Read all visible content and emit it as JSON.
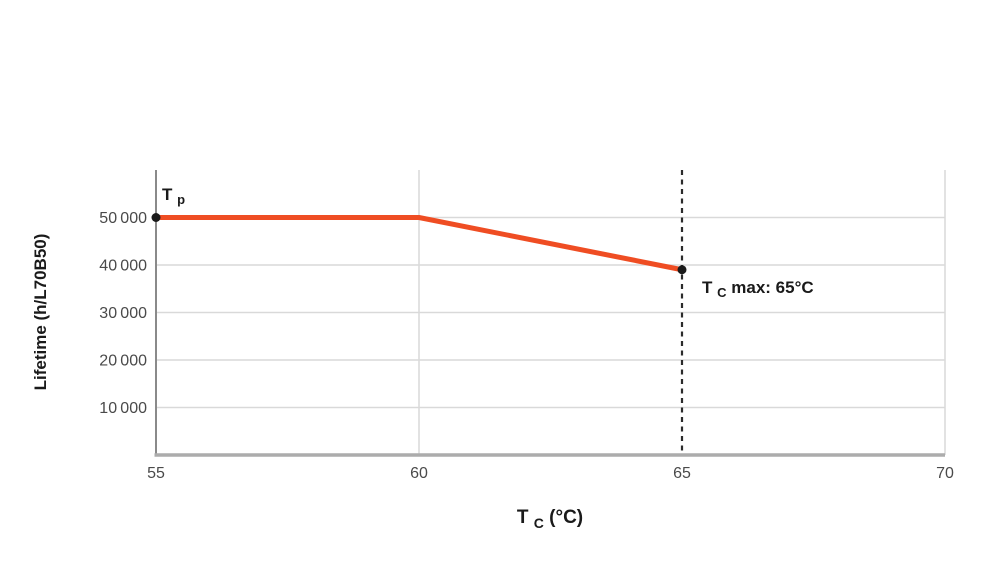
{
  "chart_data": {
    "type": "line",
    "title": "",
    "xlabel": {
      "main": "T",
      "sub": "C",
      "rest": " (°C)"
    },
    "ylabel": "Lifetime (h/L70B50)",
    "xlim": [
      55,
      70
    ],
    "ylim": [
      0,
      60000
    ],
    "grid": true,
    "legend": false,
    "x_ticks": [
      {
        "value": 55,
        "label": "55"
      },
      {
        "value": 60,
        "label": "60"
      },
      {
        "value": 65,
        "label": "65"
      },
      {
        "value": 70,
        "label": "70"
      }
    ],
    "y_ticks": [
      {
        "value": 10000,
        "label": "10 000"
      },
      {
        "value": 20000,
        "label": "20 000"
      },
      {
        "value": 30000,
        "label": "30 000"
      },
      {
        "value": 40000,
        "label": "40 000"
      },
      {
        "value": 50000,
        "label": "50 000"
      }
    ],
    "series": [
      {
        "name": "lifetime-curve",
        "color": "#EF4D23",
        "points": [
          [
            55,
            50000
          ],
          [
            60,
            50000
          ],
          [
            65,
            39000
          ]
        ]
      }
    ],
    "markers": [
      {
        "x": 55,
        "y": 50000
      },
      {
        "x": 65,
        "y": 39000
      }
    ],
    "reference_line": {
      "x": 65,
      "style": "dashed",
      "color": "#2b2b2b"
    },
    "annotations": [
      {
        "id": "tp-point-label",
        "main": "T",
        "sub": "p",
        "rest": ""
      },
      {
        "id": "tc-max-label",
        "main": "T",
        "sub": "C",
        "rest": " max: 65°C"
      }
    ],
    "colors": {
      "line": "#EF4D23",
      "grid": "#d9d9d9",
      "axis_y": "#8a8a8a",
      "axis_x": "#acacac",
      "marker": "#1a1a1a",
      "tick_text": "#4a4a4a",
      "label_text": "#1a1a1a",
      "background": "#ffffff"
    }
  }
}
